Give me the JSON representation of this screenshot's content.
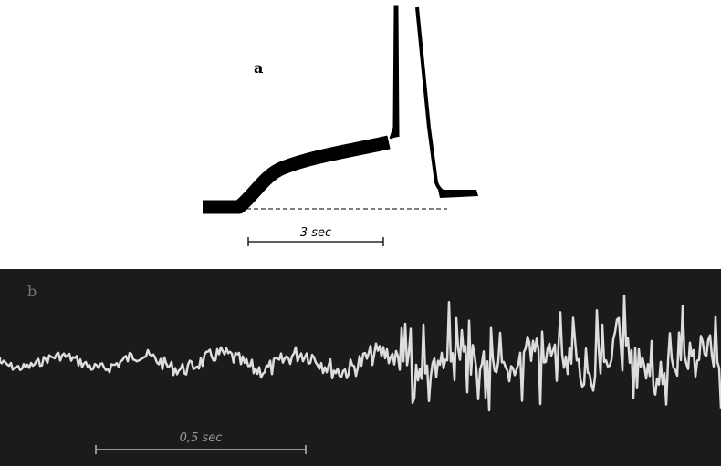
{
  "panels": [
    {
      "label": "a",
      "scale_bar": "3 sec"
    },
    {
      "label": "b",
      "scale_bar": "0,5 sec"
    }
  ]
}
